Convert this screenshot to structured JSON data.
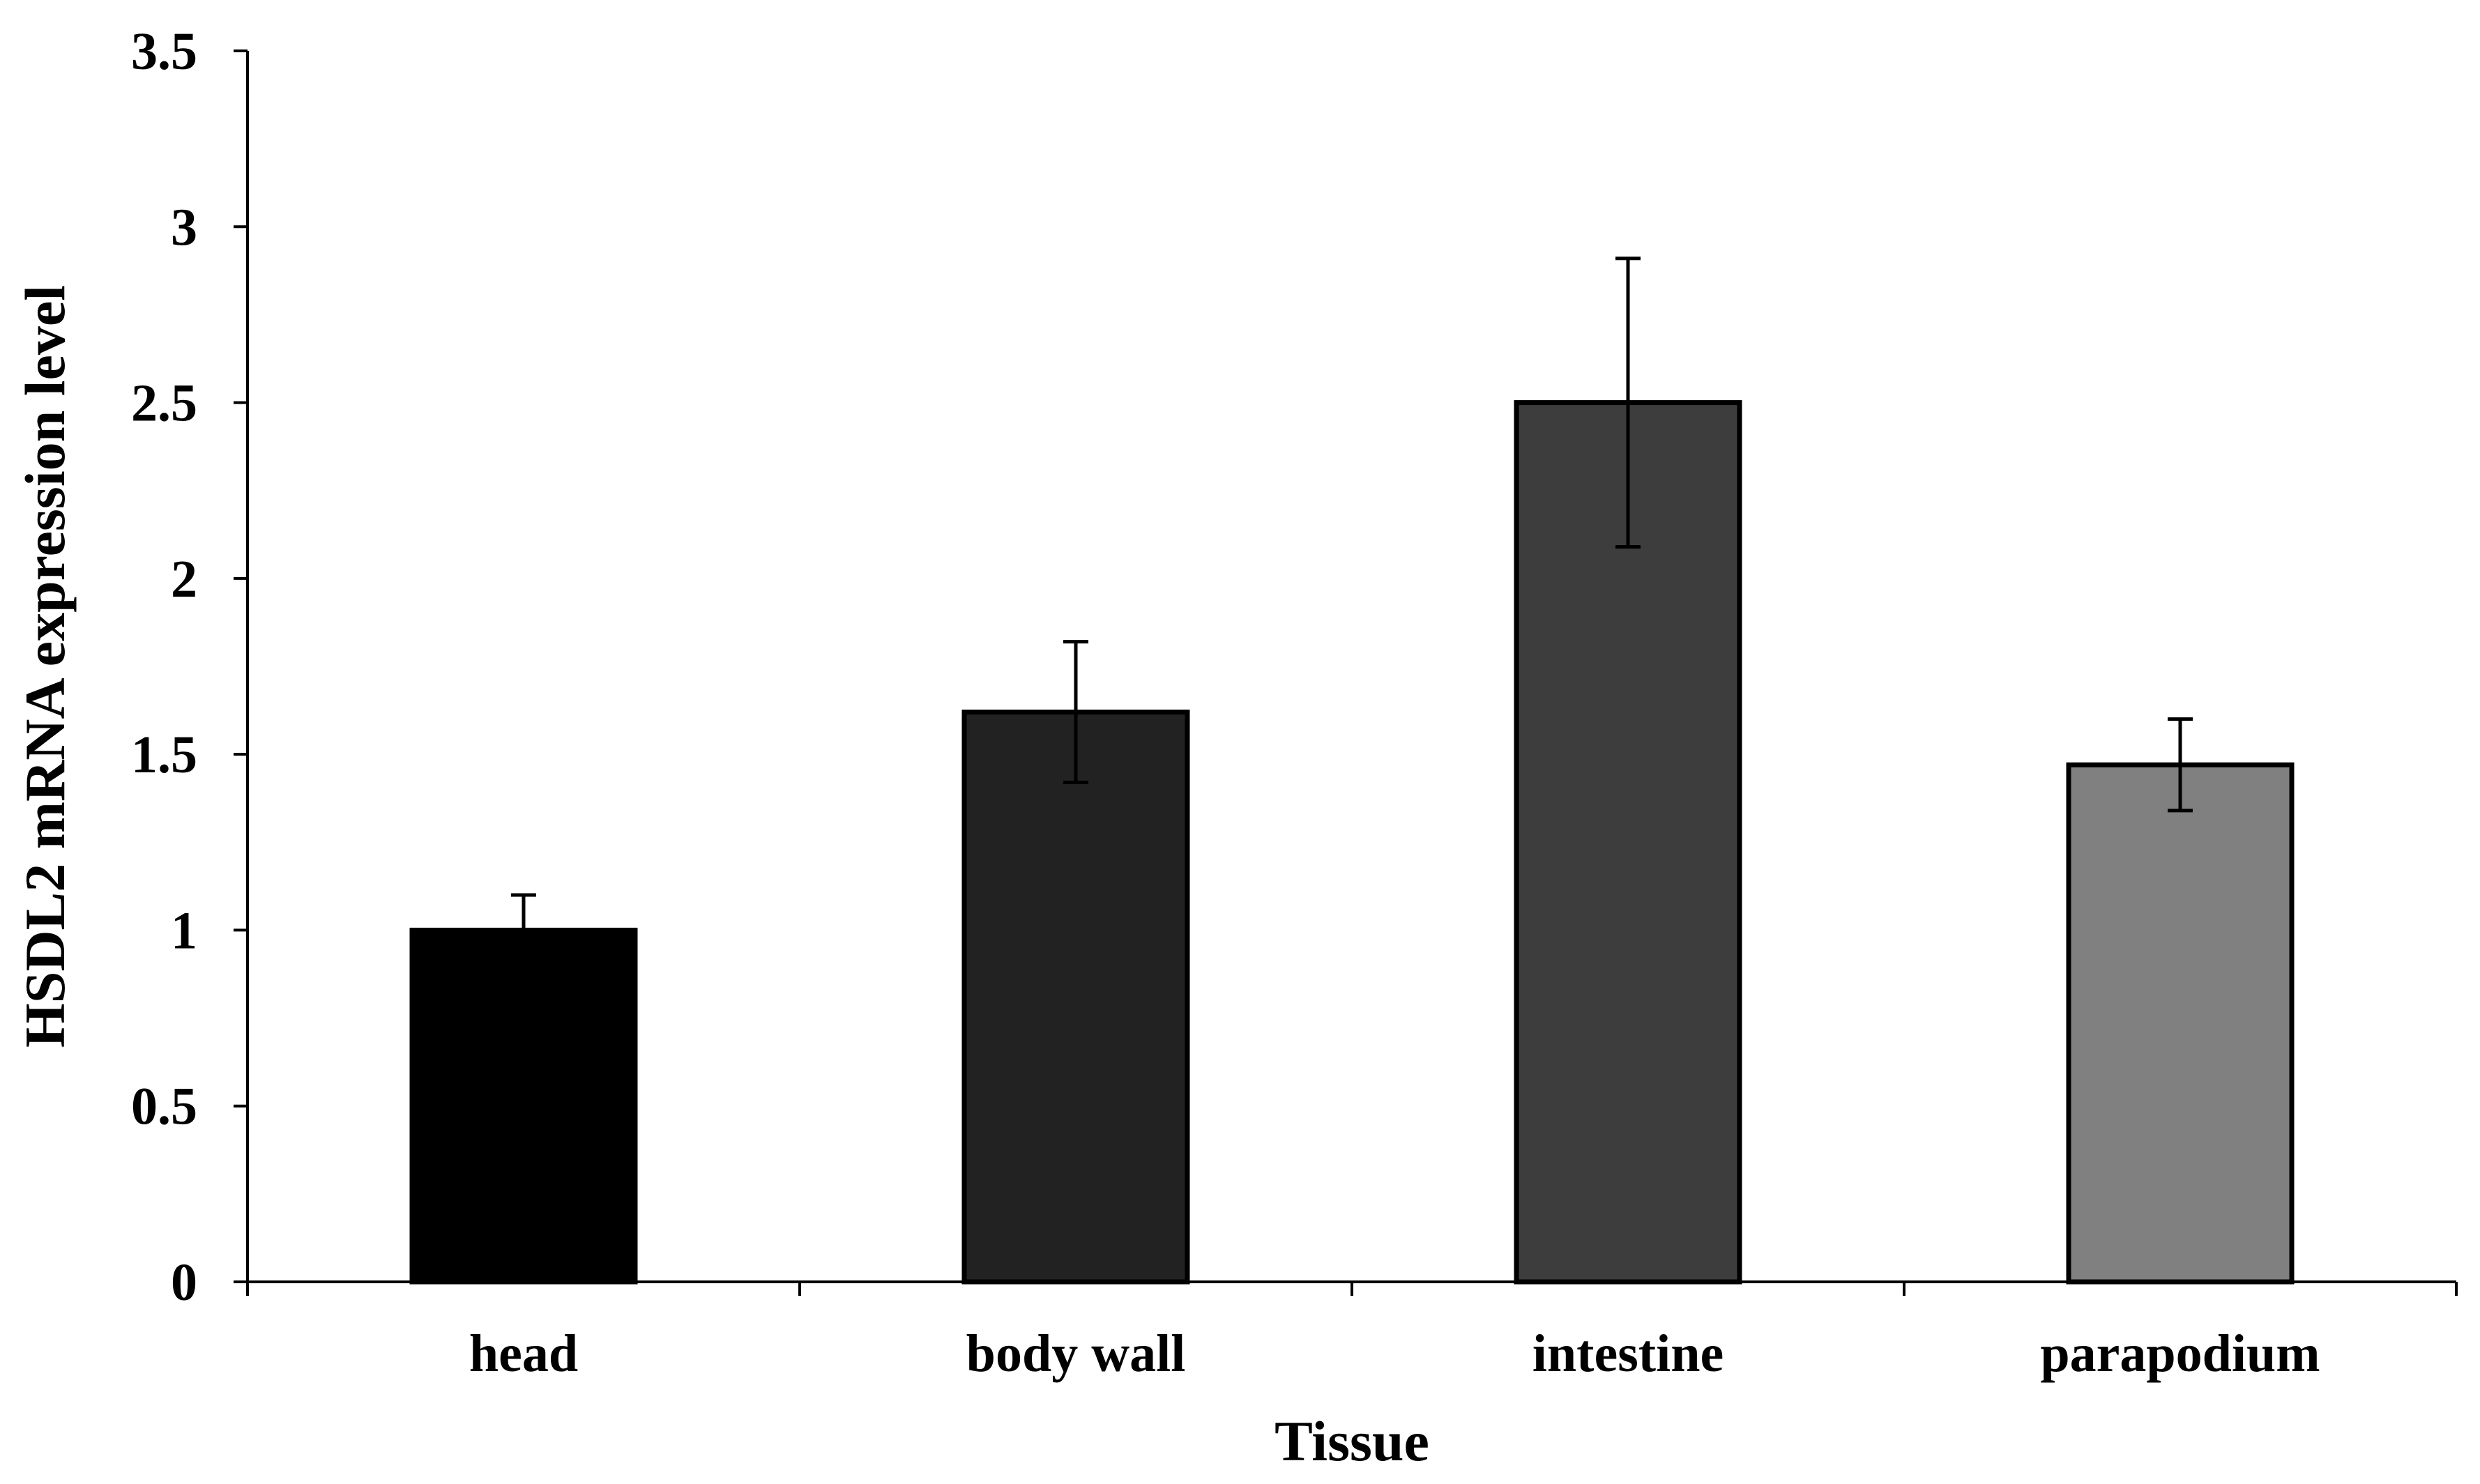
{
  "chart_data": {
    "type": "bar",
    "title": "",
    "xlabel": "Tissue",
    "ylabel": "HSDL2 mRNA expression level",
    "categories": [
      "head",
      "body wall",
      "intestine",
      "parapodium"
    ],
    "values": [
      1.0,
      1.62,
      2.5,
      1.47
    ],
    "errors": [
      0.1,
      0.2,
      0.41,
      0.13
    ],
    "bar_colors": [
      "#000000",
      "#222222",
      "#3d3d3d",
      "#808080"
    ],
    "ylim": [
      0,
      3.5
    ],
    "yticks": [
      0,
      0.5,
      1,
      1.5,
      2,
      2.5,
      3,
      3.5
    ],
    "ytick_labels": [
      "0",
      "0.5",
      "1",
      "1.5",
      "2",
      "2.5",
      "3",
      "3.5"
    ],
    "grid": false,
    "legend": "none"
  }
}
